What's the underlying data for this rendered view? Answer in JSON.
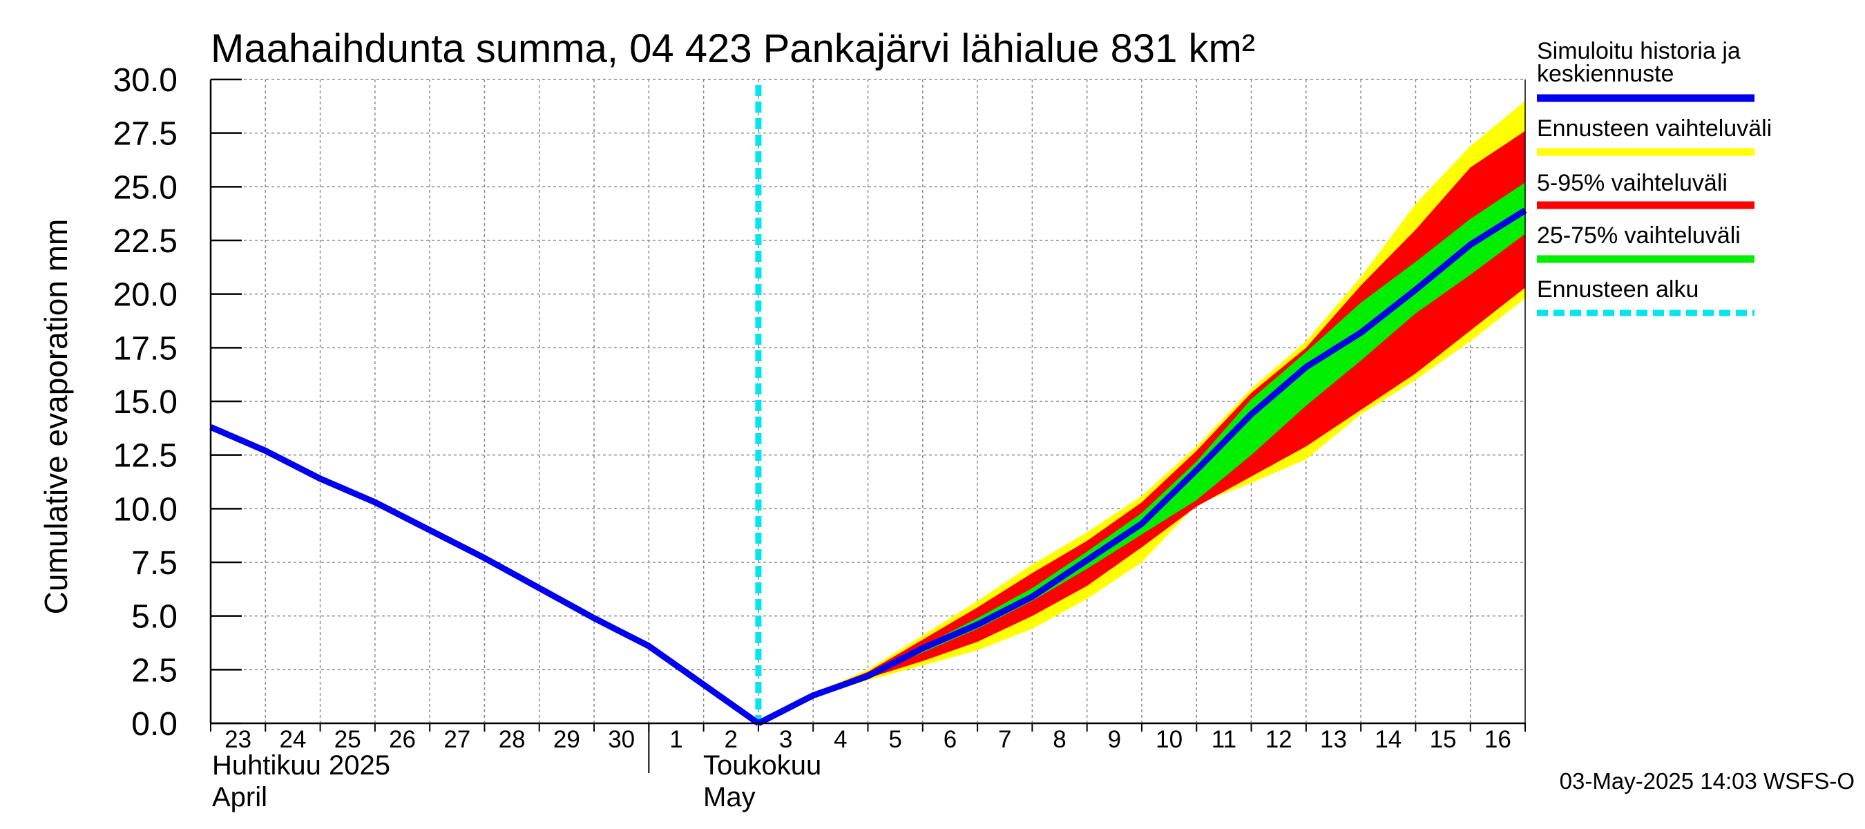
{
  "chart_data": {
    "type": "area",
    "title": "Maahaihdunta summa, 04 423 Pankajärvi lähialue 831 km²",
    "ylabel": "Cumulative evaporation   mm",
    "ylim": [
      0,
      30
    ],
    "yticks": [
      "0.0",
      "2.5",
      "5.0",
      "7.5",
      "10.0",
      "12.5",
      "15.0",
      "17.5",
      "20.0",
      "22.5",
      "25.0",
      "27.5",
      "30.0"
    ],
    "xlim": [
      "2025-04-23",
      "2025-05-17"
    ],
    "xtick_labels": [
      "23",
      "24",
      "25",
      "26",
      "27",
      "28",
      "29",
      "30",
      "1",
      "2",
      "3",
      "4",
      "5",
      "6",
      "7",
      "8",
      "9",
      "10",
      "11",
      "12",
      "13",
      "14",
      "15",
      "16"
    ],
    "month_labels": [
      {
        "line1": "Huhtikuu  2025",
        "line2": "April"
      },
      {
        "line1": "Toukokuu",
        "line2": "May"
      }
    ],
    "grid": true,
    "legend_position": "right",
    "forecast_start": "2025-05-03",
    "history": {
      "name": "Simuloitu historia ja keskiennuste",
      "color": "#0000ee",
      "x": [
        "2025-04-23",
        "2025-04-24",
        "2025-04-25",
        "2025-04-26",
        "2025-04-27",
        "2025-04-28",
        "2025-04-29",
        "2025-04-30",
        "2025-05-01",
        "2025-05-02",
        "2025-05-03"
      ],
      "y": [
        13.8,
        12.7,
        11.4,
        10.3,
        9.0,
        7.7,
        6.3,
        4.9,
        3.6,
        1.8,
        0.0
      ]
    },
    "forecast_x": [
      "2025-05-03",
      "2025-05-04",
      "2025-05-05",
      "2025-05-06",
      "2025-05-07",
      "2025-05-08",
      "2025-05-09",
      "2025-05-10",
      "2025-05-11",
      "2025-05-12",
      "2025-05-13",
      "2025-05-14",
      "2025-05-15",
      "2025-05-16",
      "2025-05-17"
    ],
    "median": [
      0.0,
      1.3,
      2.2,
      3.5,
      4.6,
      5.9,
      7.6,
      9.3,
      11.8,
      14.4,
      16.6,
      18.2,
      20.2,
      22.3,
      23.9
    ],
    "bands": [
      {
        "name": "Ennusteen vaihteluväli",
        "color": "#ffff00",
        "low": [
          0.0,
          1.2,
          2.0,
          2.7,
          3.4,
          4.4,
          5.8,
          7.5,
          10.2,
          11.2,
          12.3,
          14.4,
          16.0,
          17.8,
          19.8
        ],
        "high": [
          0.0,
          1.4,
          2.5,
          4.1,
          5.7,
          7.4,
          8.9,
          10.6,
          12.9,
          15.6,
          17.8,
          20.8,
          24.2,
          26.9,
          29.0
        ]
      },
      {
        "name": "5-95% vaihteluväli",
        "color": "#ff0000",
        "low": [
          0.0,
          1.2,
          2.1,
          2.9,
          3.8,
          5.0,
          6.4,
          8.2,
          10.1,
          11.5,
          12.9,
          14.6,
          16.3,
          18.3,
          20.3
        ],
        "high": [
          0.0,
          1.4,
          2.4,
          3.9,
          5.4,
          7.0,
          8.5,
          10.3,
          12.7,
          15.4,
          17.5,
          20.4,
          23.0,
          25.9,
          27.6
        ]
      },
      {
        "name": "25-75% vaihteluväli",
        "color": "#00ee00",
        "low": [
          0.0,
          1.3,
          2.2,
          3.3,
          4.4,
          5.7,
          7.2,
          8.8,
          10.4,
          12.5,
          14.8,
          16.9,
          19.1,
          20.9,
          22.8
        ],
        "high": [
          0.0,
          1.4,
          2.3,
          3.6,
          4.9,
          6.3,
          8.0,
          9.8,
          12.2,
          15.1,
          17.3,
          19.6,
          21.5,
          23.5,
          25.2
        ]
      }
    ],
    "forecast_line": {
      "name": "Ennusteen alku",
      "color": "#00e5ee"
    }
  },
  "legend": {
    "history_line1": "Simuloitu historia ja",
    "history_line2": "keskiennuste",
    "range_all": "Ennusteen vaihteluväli",
    "range_5_95": "5-95% vaihteluväli",
    "range_25_75": "25-75% vaihteluväli",
    "forecast_start": "Ennusteen alku"
  },
  "timestamp": "03-May-2025 14:03 WSFS-O"
}
